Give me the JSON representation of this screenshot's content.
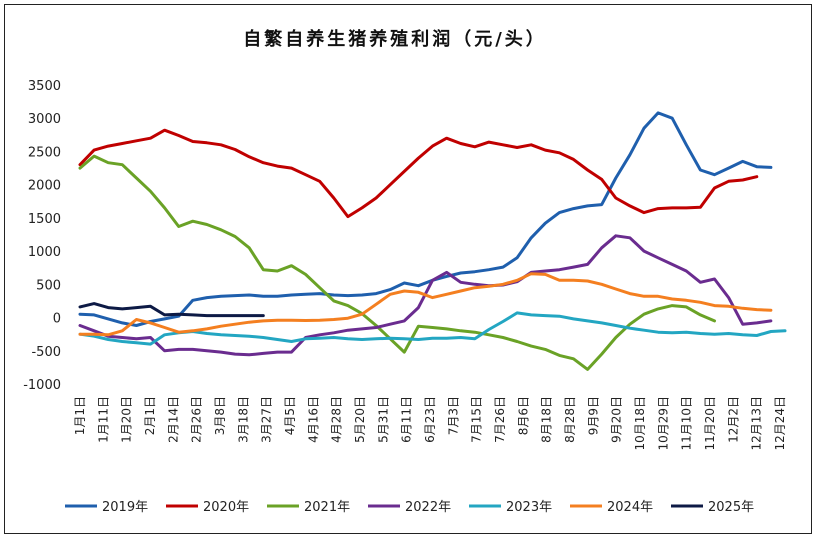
{
  "chart_data": {
    "type": "line",
    "title": "自繁自养生猪养殖利润（元/头）",
    "xlabel": "",
    "ylabel": "",
    "ylim": [
      -1000,
      3500
    ],
    "yticks": [
      3500,
      3000,
      2500,
      2000,
      1500,
      1000,
      500,
      0,
      -500,
      -1000
    ],
    "grid": false,
    "legend_position": "bottom",
    "x_tick_labels": [
      "1月1日",
      "1月11日",
      "1月20日",
      "2月1日",
      "2月14日",
      "2月26日",
      "3月8日",
      "3月18日",
      "3月27日",
      "4月5日",
      "4月16日",
      "4月28日",
      "5月20日",
      "5月31日",
      "6月11日",
      "6月23日",
      "7月3日",
      "7月15日",
      "7月26日",
      "8月6日",
      "8月18日",
      "8月28日",
      "9月9日",
      "9月20日",
      "10月18日",
      "10月29日",
      "11月10日",
      "11月20日",
      "12月2日",
      "12月13日",
      "12月24日"
    ],
    "series": [
      {
        "name": "2019年",
        "color": "#1f5fad",
        "values": [
          50,
          40,
          -20,
          -80,
          -120,
          -60,
          -20,
          20,
          260,
          300,
          320,
          330,
          340,
          320,
          320,
          340,
          350,
          360,
          340,
          330,
          340,
          360,
          420,
          520,
          480,
          560,
          620,
          670,
          690,
          720,
          760,
          900,
          1200,
          1420,
          1580,
          1640,
          1680,
          1700,
          2100,
          2450,
          2850,
          3080,
          3000,
          2600,
          2220,
          2150,
          2250,
          2350,
          2270,
          2260
        ]
      },
      {
        "name": "2020年",
        "color": "#c00000",
        "values": [
          2300,
          2520,
          2580,
          2620,
          2660,
          2700,
          2820,
          2740,
          2650,
          2630,
          2600,
          2530,
          2420,
          2330,
          2280,
          2250,
          2150,
          2050,
          1800,
          1520,
          1650,
          1800,
          2000,
          2200,
          2400,
          2580,
          2700,
          2620,
          2570,
          2640,
          2600,
          2560,
          2600,
          2520,
          2480,
          2380,
          2220,
          2080,
          1800,
          1680,
          1580,
          1640,
          1650,
          1650,
          1660,
          1950,
          2050,
          2070,
          2120
        ]
      },
      {
        "name": "2021年",
        "color": "#6aa226",
        "values": [
          2250,
          2430,
          2330,
          2300,
          2100,
          1900,
          1650,
          1370,
          1450,
          1400,
          1320,
          1220,
          1050,
          720,
          700,
          780,
          650,
          450,
          250,
          180,
          60,
          -120,
          -320,
          -520,
          -130,
          -150,
          -170,
          -200,
          -220,
          -260,
          -300,
          -360,
          -430,
          -480,
          -570,
          -620,
          -780,
          -550,
          -300,
          -100,
          50,
          130,
          180,
          160,
          40,
          -50
        ]
      },
      {
        "name": "2022年",
        "color": "#6a2c8f",
        "values": [
          -120,
          -200,
          -280,
          -300,
          -320,
          -300,
          -500,
          -480,
          -480,
          -500,
          -520,
          -550,
          -560,
          -540,
          -520,
          -520,
          -300,
          -260,
          -230,
          -190,
          -170,
          -150,
          -100,
          -50,
          150,
          560,
          680,
          530,
          500,
          480,
          490,
          540,
          680,
          700,
          720,
          760,
          800,
          1050,
          1230,
          1200,
          1000,
          900,
          800,
          700,
          530,
          580,
          300,
          -100,
          -80,
          -50
        ]
      },
      {
        "name": "2023年",
        "color": "#23a6c2",
        "values": [
          -250,
          -280,
          -330,
          -360,
          -380,
          -400,
          -260,
          -230,
          -210,
          -240,
          -260,
          -270,
          -280,
          -300,
          -330,
          -360,
          -320,
          -310,
          -300,
          -320,
          -330,
          -320,
          -310,
          -320,
          -330,
          -310,
          -310,
          -300,
          -320,
          -180,
          -60,
          70,
          40,
          30,
          20,
          -20,
          -50,
          -80,
          -120,
          -160,
          -190,
          -220,
          -230,
          -220,
          -240,
          -250,
          -240,
          -260,
          -270,
          -210,
          -200
        ]
      },
      {
        "name": "2024年",
        "color": "#f47f20",
        "values": [
          -250,
          -250,
          -260,
          -200,
          -30,
          -80,
          -150,
          -220,
          -200,
          -170,
          -130,
          -100,
          -70,
          -50,
          -40,
          -40,
          -45,
          -40,
          -30,
          -10,
          50,
          200,
          350,
          400,
          380,
          300,
          350,
          400,
          450,
          470,
          500,
          560,
          660,
          650,
          560,
          560,
          550,
          500,
          430,
          360,
          320,
          320,
          280,
          260,
          230,
          180,
          170,
          140,
          120,
          110
        ]
      },
      {
        "name": "2025年",
        "color": "#0d1a45",
        "values": [
          160,
          210,
          150,
          130,
          150,
          170,
          40,
          50,
          40,
          30,
          30,
          30,
          30,
          30
        ]
      }
    ]
  }
}
